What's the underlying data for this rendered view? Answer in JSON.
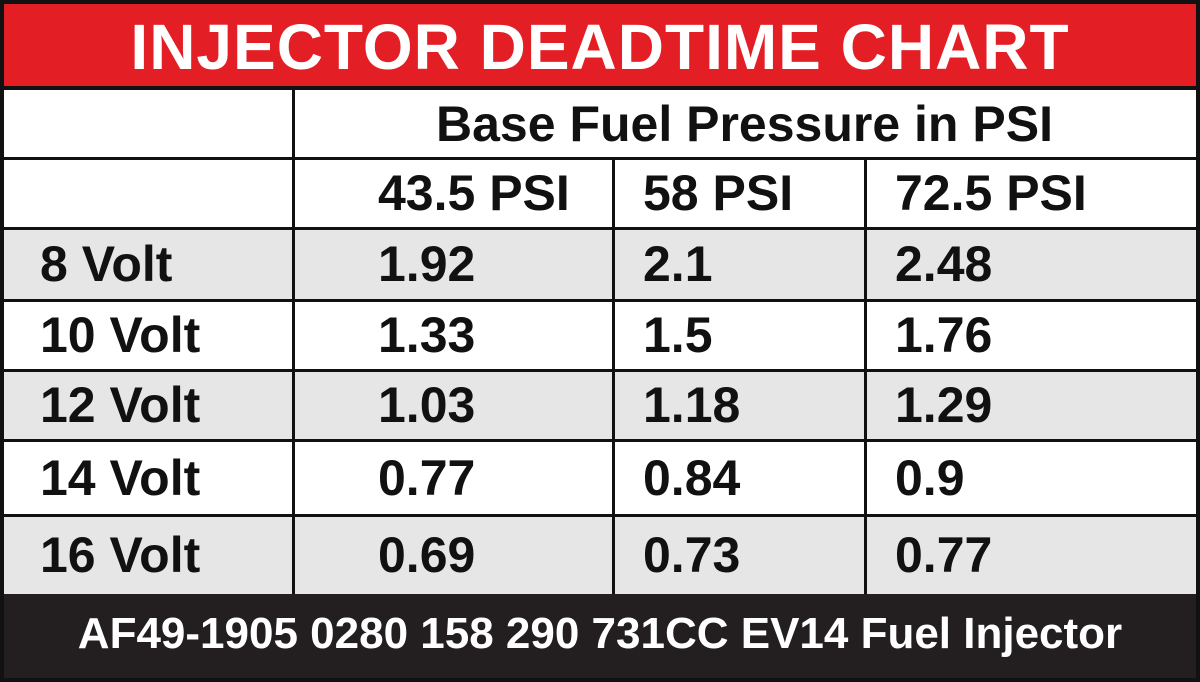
{
  "title": "INJECTOR DEADTIME CHART",
  "table": {
    "group_header": "Base Fuel Pressure in PSI",
    "columns": [
      "43.5 PSI",
      "58 PSI",
      "72.5 PSI"
    ],
    "rows": [
      {
        "label": "8 Volt",
        "values": [
          "1.92",
          "2.1",
          "2.48"
        ]
      },
      {
        "label": "10 Volt",
        "values": [
          "1.33",
          "1.5",
          "1.76"
        ]
      },
      {
        "label": "12 Volt",
        "values": [
          "1.03",
          "1.18",
          "1.29"
        ]
      },
      {
        "label": "14 Volt",
        "values": [
          "0.77",
          "0.84",
          "0.9"
        ]
      },
      {
        "label": "16 Volt",
        "values": [
          "0.69",
          "0.73",
          "0.77"
        ]
      }
    ]
  },
  "footer": "AF49-1905 0280 158 290 731CC EV14 Fuel Injector"
}
